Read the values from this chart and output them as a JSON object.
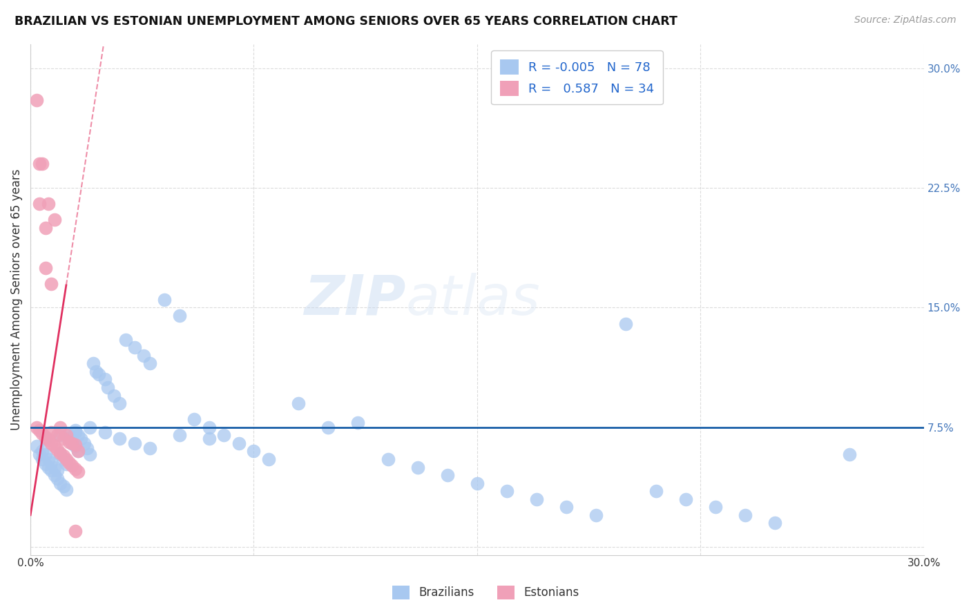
{
  "title": "BRAZILIAN VS ESTONIAN UNEMPLOYMENT AMONG SENIORS OVER 65 YEARS CORRELATION CHART",
  "source": "Source: ZipAtlas.com",
  "ylabel": "Unemployment Among Seniors over 65 years",
  "xlim": [
    0.0,
    0.3
  ],
  "ylim": [
    -0.005,
    0.315
  ],
  "xticks": [
    0.0,
    0.075,
    0.15,
    0.225,
    0.3
  ],
  "yticks": [
    0.0,
    0.075,
    0.15,
    0.225,
    0.3
  ],
  "xtick_labels": [
    "0.0%",
    "",
    "",
    "",
    "30.0%"
  ],
  "ytick_labels": [
    "",
    "7.5%",
    "15.0%",
    "22.5%",
    "30.0%"
  ],
  "blue_R": "-0.005",
  "blue_N": "78",
  "pink_R": "0.587",
  "pink_N": "34",
  "blue_color": "#a8c8f0",
  "pink_color": "#f0a0b8",
  "blue_line_color": "#1a5fa8",
  "pink_line_color": "#e03060",
  "watermark_zip": "ZIP",
  "watermark_atlas": "atlas",
  "legend_label_blue": "Brazilians",
  "legend_label_pink": "Estonians",
  "blue_line_y": 0.075,
  "pink_line_slope": 12.0,
  "pink_line_intercept": 0.02,
  "blue_points_x": [
    0.002,
    0.003,
    0.004,
    0.004,
    0.005,
    0.005,
    0.006,
    0.006,
    0.007,
    0.007,
    0.008,
    0.008,
    0.009,
    0.009,
    0.01,
    0.01,
    0.011,
    0.011,
    0.012,
    0.012,
    0.013,
    0.013,
    0.014,
    0.015,
    0.015,
    0.016,
    0.016,
    0.017,
    0.018,
    0.019,
    0.02,
    0.021,
    0.022,
    0.023,
    0.025,
    0.026,
    0.028,
    0.03,
    0.032,
    0.035,
    0.038,
    0.04,
    0.045,
    0.05,
    0.055,
    0.06,
    0.065,
    0.07,
    0.075,
    0.08,
    0.09,
    0.1,
    0.11,
    0.12,
    0.13,
    0.14,
    0.15,
    0.16,
    0.17,
    0.18,
    0.19,
    0.2,
    0.21,
    0.22,
    0.23,
    0.24,
    0.25,
    0.025,
    0.03,
    0.035,
    0.04,
    0.05,
    0.06,
    0.275,
    0.02,
    0.015,
    0.01,
    0.005
  ],
  "blue_points_y": [
    0.063,
    0.058,
    0.055,
    0.06,
    0.052,
    0.058,
    0.05,
    0.055,
    0.048,
    0.053,
    0.045,
    0.05,
    0.043,
    0.048,
    0.04,
    0.058,
    0.038,
    0.055,
    0.036,
    0.052,
    0.07,
    0.068,
    0.065,
    0.063,
    0.072,
    0.07,
    0.06,
    0.068,
    0.065,
    0.062,
    0.058,
    0.115,
    0.11,
    0.108,
    0.105,
    0.1,
    0.095,
    0.09,
    0.13,
    0.125,
    0.12,
    0.115,
    0.155,
    0.145,
    0.08,
    0.075,
    0.07,
    0.065,
    0.06,
    0.055,
    0.09,
    0.075,
    0.078,
    0.055,
    0.05,
    0.045,
    0.04,
    0.035,
    0.03,
    0.025,
    0.02,
    0.14,
    0.035,
    0.03,
    0.025,
    0.02,
    0.015,
    0.072,
    0.068,
    0.065,
    0.062,
    0.07,
    0.068,
    0.058,
    0.075,
    0.073,
    0.07,
    0.068
  ],
  "pink_points_x": [
    0.002,
    0.004,
    0.006,
    0.008,
    0.01,
    0.012,
    0.014,
    0.016,
    0.003,
    0.005,
    0.007,
    0.009,
    0.011,
    0.013,
    0.015,
    0.002,
    0.003,
    0.004,
    0.005,
    0.006,
    0.007,
    0.008,
    0.009,
    0.01,
    0.011,
    0.012,
    0.013,
    0.014,
    0.015,
    0.016,
    0.003,
    0.005,
    0.007,
    0.015
  ],
  "pink_points_y": [
    0.28,
    0.24,
    0.215,
    0.205,
    0.075,
    0.07,
    0.065,
    0.06,
    0.215,
    0.175,
    0.072,
    0.07,
    0.068,
    0.066,
    0.064,
    0.075,
    0.073,
    0.071,
    0.069,
    0.067,
    0.065,
    0.063,
    0.061,
    0.059,
    0.057,
    0.055,
    0.053,
    0.051,
    0.049,
    0.047,
    0.24,
    0.2,
    0.165,
    0.01
  ]
}
